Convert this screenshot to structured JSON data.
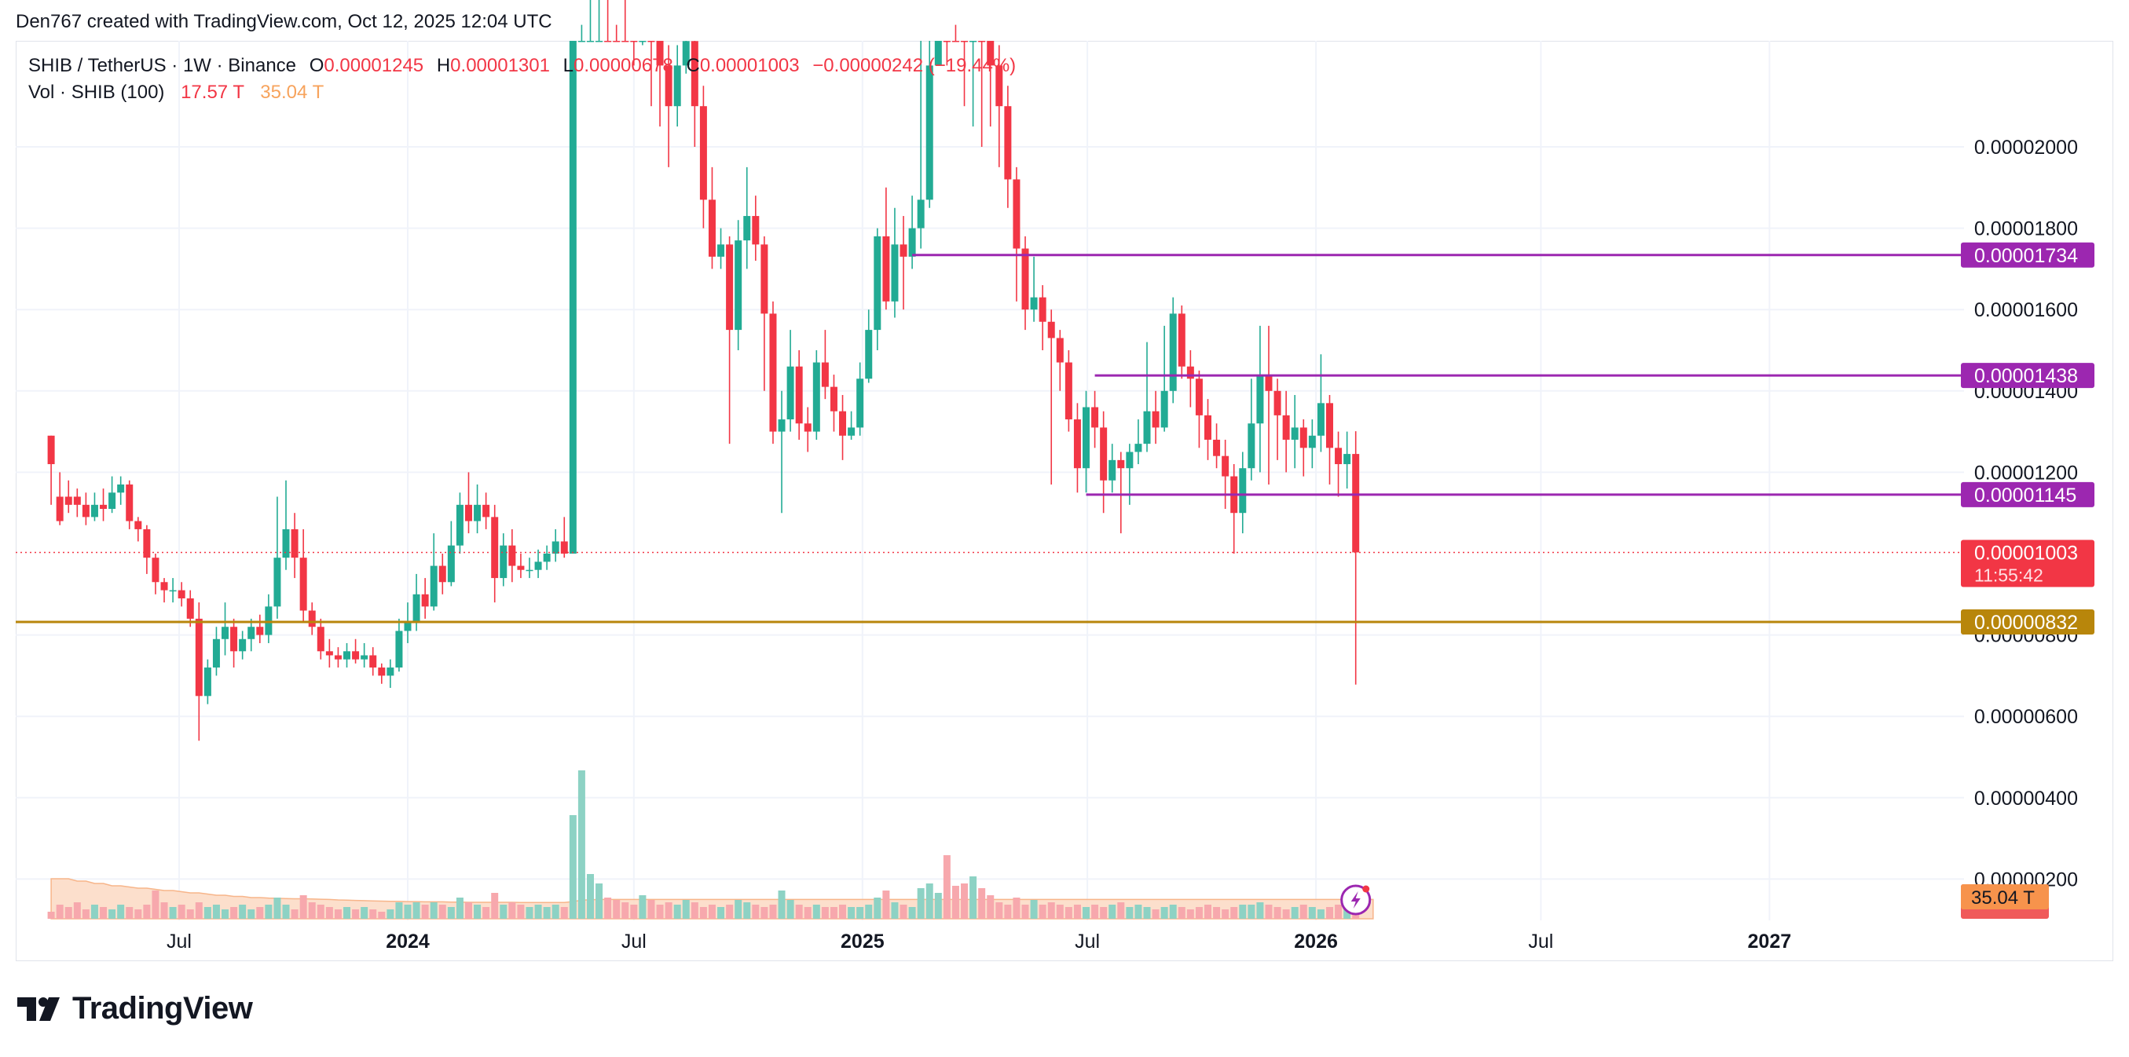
{
  "header": {
    "credit": "Den767 created with TradingView.com, Oct 12, 2025 12:04 UTC"
  },
  "legend": {
    "symbol": "SHIB / TetherUS · 1W · Binance",
    "o_key": "O",
    "o_val": "0.00001245",
    "h_key": "H",
    "h_val": "0.00001301",
    "l_key": "L",
    "l_val": "0.00000678",
    "c_key": "C",
    "c_val": "0.00001003",
    "change": "−0.00000242 (−19.44%)",
    "vol_label": "Vol · SHIB (100)",
    "vol_value": "17.57 T",
    "vol_ma": "35.04 T"
  },
  "footer": {
    "logo_text": "TradingView"
  },
  "colors": {
    "up": "#22ab94",
    "down": "#f23645",
    "level": "#9c27b0",
    "support": "#b8860b",
    "price_line": "#f23645",
    "vol_ma_fill": "#fcd9c3",
    "vol_ma_badge": "#f7934c"
  },
  "chart_data": {
    "type": "candlestick",
    "title": "SHIB / TetherUS · 1W · Binance",
    "y_ticks": [
      "0.00002000",
      "0.00001800",
      "0.00001600",
      "0.00001400",
      "0.00001200",
      "0.00000800",
      "0.00000600",
      "0.00000400",
      "0.00000200"
    ],
    "y_tick_values": [
      2e-05,
      1.8e-05,
      1.6e-05,
      1.4e-05,
      1.2e-05,
      8e-06,
      6e-06,
      4e-06,
      2e-06
    ],
    "x_ticks": [
      {
        "label": "Jul",
        "date": "2023-07-01",
        "bold": false
      },
      {
        "label": "2024",
        "date": "2024-01-01",
        "bold": true
      },
      {
        "label": "Jul",
        "date": "2024-07-01",
        "bold": false
      },
      {
        "label": "2025",
        "date": "2025-01-01",
        "bold": true
      },
      {
        "label": "Jul",
        "date": "2025-07-01",
        "bold": false
      },
      {
        "label": "2026",
        "date": "2026-01-01",
        "bold": true
      },
      {
        "label": "Jul",
        "date": "2026-07-01",
        "bold": false
      },
      {
        "label": "2027",
        "date": "2027-01-01",
        "bold": true
      }
    ],
    "ohlc_start_week": "2023-03-20",
    "ohlc": [
      [
        1.29,
        1.22,
        1.29,
        1.12
      ],
      [
        1.14,
        1.08,
        1.2,
        1.07
      ],
      [
        1.14,
        1.12,
        1.18,
        1.1
      ],
      [
        1.14,
        1.12,
        1.16,
        1.09
      ],
      [
        1.12,
        1.09,
        1.15,
        1.07
      ],
      [
        1.09,
        1.12,
        1.15,
        1.08
      ],
      [
        1.12,
        1.11,
        1.16,
        1.08
      ],
      [
        1.11,
        1.15,
        1.19,
        1.1
      ],
      [
        1.15,
        1.17,
        1.19,
        1.12
      ],
      [
        1.17,
        1.08,
        1.18,
        1.06
      ],
      [
        1.08,
        1.06,
        1.09,
        1.03
      ],
      [
        1.06,
        0.99,
        1.07,
        0.95
      ],
      [
        0.99,
        0.93,
        1.0,
        0.9
      ],
      [
        0.93,
        0.91,
        0.94,
        0.88
      ],
      [
        0.91,
        0.91,
        0.94,
        0.88
      ],
      [
        0.91,
        0.89,
        0.93,
        0.87
      ],
      [
        0.89,
        0.84,
        0.91,
        0.82
      ],
      [
        0.84,
        0.65,
        0.88,
        0.54
      ],
      [
        0.65,
        0.72,
        0.74,
        0.63
      ],
      [
        0.72,
        0.79,
        0.82,
        0.7
      ],
      [
        0.79,
        0.82,
        0.88,
        0.75
      ],
      [
        0.82,
        0.76,
        0.84,
        0.72
      ],
      [
        0.76,
        0.79,
        0.81,
        0.74
      ],
      [
        0.79,
        0.82,
        0.84,
        0.76
      ],
      [
        0.82,
        0.8,
        0.85,
        0.78
      ],
      [
        0.8,
        0.87,
        0.9,
        0.78
      ],
      [
        0.87,
        0.99,
        1.14,
        0.84
      ],
      [
        0.99,
        1.06,
        1.18,
        0.96
      ],
      [
        1.06,
        0.99,
        1.1,
        0.94
      ],
      [
        0.99,
        0.86,
        1.06,
        0.83
      ],
      [
        0.86,
        0.82,
        0.88,
        0.8
      ],
      [
        0.82,
        0.76,
        0.84,
        0.74
      ],
      [
        0.76,
        0.75,
        0.79,
        0.72
      ],
      [
        0.75,
        0.74,
        0.77,
        0.72
      ],
      [
        0.74,
        0.76,
        0.78,
        0.72
      ],
      [
        0.76,
        0.74,
        0.79,
        0.73
      ],
      [
        0.74,
        0.75,
        0.78,
        0.72
      ],
      [
        0.75,
        0.72,
        0.77,
        0.7
      ],
      [
        0.72,
        0.7,
        0.73,
        0.68
      ],
      [
        0.7,
        0.72,
        0.74,
        0.67
      ],
      [
        0.72,
        0.81,
        0.84,
        0.71
      ],
      [
        0.81,
        0.83,
        0.88,
        0.78
      ],
      [
        0.83,
        0.9,
        0.95,
        0.81
      ],
      [
        0.9,
        0.87,
        0.94,
        0.84
      ],
      [
        0.87,
        0.97,
        1.05,
        0.86
      ],
      [
        0.97,
        0.93,
        1.0,
        0.9
      ],
      [
        0.93,
        1.02,
        1.08,
        0.92
      ],
      [
        1.02,
        1.12,
        1.15,
        1.0
      ],
      [
        1.12,
        1.08,
        1.2,
        1.05
      ],
      [
        1.08,
        1.12,
        1.17,
        1.05
      ],
      [
        1.12,
        1.09,
        1.15,
        1.06
      ],
      [
        1.09,
        0.94,
        1.12,
        0.88
      ],
      [
        0.94,
        1.02,
        1.05,
        0.92
      ],
      [
        1.02,
        0.97,
        1.06,
        0.93
      ],
      [
        0.97,
        0.96,
        1.0,
        0.94
      ],
      [
        0.96,
        0.96,
        0.99,
        0.94
      ],
      [
        0.96,
        0.98,
        1.01,
        0.94
      ],
      [
        0.98,
        1.0,
        1.02,
        0.96
      ],
      [
        1.0,
        1.03,
        1.06,
        0.98
      ],
      [
        1.03,
        1.0,
        1.09,
        0.99
      ],
      [
        1.0,
        2.4,
        2.4,
        1.0
      ],
      [
        2.4,
        2.6,
        3.0,
        2.3
      ],
      [
        2.6,
        2.72,
        2.9,
        2.5
      ],
      [
        2.72,
        2.75,
        2.85,
        2.6
      ],
      [
        2.75,
        2.72,
        2.8,
        2.65
      ],
      [
        2.72,
        2.5,
        2.8,
        2.3
      ],
      [
        2.5,
        2.45,
        2.58,
        2.4
      ],
      [
        2.45,
        2.3,
        2.5,
        2.2
      ],
      [
        2.3,
        2.4,
        2.5,
        2.25
      ],
      [
        2.4,
        2.33,
        2.45,
        2.1
      ],
      [
        2.33,
        2.2,
        2.4,
        2.05
      ],
      [
        2.2,
        2.1,
        2.25,
        1.95
      ],
      [
        2.1,
        2.2,
        2.25,
        2.05
      ],
      [
        2.2,
        2.26,
        2.3,
        2.18
      ],
      [
        2.26,
        2.1,
        2.3,
        2.0
      ],
      [
        2.1,
        1.87,
        2.15,
        1.8
      ],
      [
        1.87,
        1.73,
        1.95,
        1.7
      ],
      [
        1.73,
        1.76,
        1.8,
        1.7
      ],
      [
        1.76,
        1.55,
        1.78,
        1.27
      ],
      [
        1.55,
        1.77,
        1.82,
        1.5
      ],
      [
        1.77,
        1.83,
        1.95,
        1.7
      ],
      [
        1.83,
        1.76,
        1.88,
        1.72
      ],
      [
        1.76,
        1.59,
        1.78,
        1.4
      ],
      [
        1.59,
        1.3,
        1.62,
        1.27
      ],
      [
        1.3,
        1.33,
        1.4,
        1.1
      ],
      [
        1.33,
        1.46,
        1.55,
        1.3
      ],
      [
        1.46,
        1.32,
        1.5,
        1.28
      ],
      [
        1.32,
        1.3,
        1.36,
        1.25
      ],
      [
        1.3,
        1.47,
        1.5,
        1.28
      ],
      [
        1.47,
        1.41,
        1.55,
        1.38
      ],
      [
        1.41,
        1.35,
        1.44,
        1.3
      ],
      [
        1.35,
        1.29,
        1.39,
        1.23
      ],
      [
        1.29,
        1.31,
        1.35,
        1.28
      ],
      [
        1.31,
        1.43,
        1.47,
        1.29
      ],
      [
        1.43,
        1.55,
        1.6,
        1.42
      ],
      [
        1.55,
        1.78,
        1.8,
        1.5
      ],
      [
        1.78,
        1.62,
        1.9,
        1.6
      ],
      [
        1.62,
        1.76,
        1.85,
        1.58
      ],
      [
        1.76,
        1.73,
        1.83,
        1.6
      ],
      [
        1.73,
        1.8,
        1.88,
        1.7
      ],
      [
        1.8,
        1.87,
        2.35,
        1.75
      ],
      [
        1.87,
        2.2,
        2.6,
        1.85
      ],
      [
        2.2,
        2.65,
        3.0,
        2.2
      ],
      [
        2.65,
        2.55,
        2.8,
        2.2
      ],
      [
        2.55,
        2.45,
        2.7,
        2.3
      ],
      [
        2.45,
        2.3,
        2.55,
        2.1
      ],
      [
        2.3,
        2.35,
        2.4,
        2.05
      ],
      [
        2.35,
        2.3,
        2.45,
        2.0
      ],
      [
        2.3,
        2.2,
        2.35,
        2.05
      ],
      [
        2.2,
        2.1,
        2.25,
        1.95
      ],
      [
        2.1,
        1.92,
        2.15,
        1.85
      ],
      [
        1.92,
        1.75,
        1.95,
        1.62
      ],
      [
        1.75,
        1.6,
        1.78,
        1.55
      ],
      [
        1.6,
        1.63,
        1.73,
        1.57
      ],
      [
        1.63,
        1.57,
        1.66,
        1.5
      ],
      [
        1.57,
        1.53,
        1.6,
        1.17
      ],
      [
        1.53,
        1.47,
        1.55,
        1.4
      ],
      [
        1.47,
        1.33,
        1.5,
        1.3
      ],
      [
        1.33,
        1.21,
        1.37,
        1.15
      ],
      [
        1.21,
        1.36,
        1.4,
        1.15
      ],
      [
        1.36,
        1.31,
        1.4,
        1.26
      ],
      [
        1.31,
        1.18,
        1.35,
        1.1
      ],
      [
        1.18,
        1.23,
        1.27,
        1.15
      ],
      [
        1.23,
        1.21,
        1.25,
        1.05
      ],
      [
        1.21,
        1.25,
        1.27,
        1.12
      ],
      [
        1.25,
        1.27,
        1.33,
        1.22
      ],
      [
        1.27,
        1.35,
        1.52,
        1.25
      ],
      [
        1.35,
        1.31,
        1.4,
        1.27
      ],
      [
        1.31,
        1.4,
        1.56,
        1.3
      ],
      [
        1.4,
        1.59,
        1.63,
        1.37
      ],
      [
        1.59,
        1.46,
        1.61,
        1.43
      ],
      [
        1.46,
        1.43,
        1.5,
        1.36
      ],
      [
        1.43,
        1.34,
        1.45,
        1.26
      ],
      [
        1.34,
        1.28,
        1.38,
        1.23
      ],
      [
        1.28,
        1.24,
        1.32,
        1.21
      ],
      [
        1.24,
        1.19,
        1.28,
        1.11
      ],
      [
        1.19,
        1.1,
        1.22,
        1.0
      ],
      [
        1.1,
        1.21,
        1.25,
        1.05
      ],
      [
        1.21,
        1.32,
        1.43,
        1.18
      ],
      [
        1.32,
        1.44,
        1.56,
        1.2
      ],
      [
        1.44,
        1.4,
        1.56,
        1.17
      ],
      [
        1.4,
        1.34,
        1.43,
        1.23
      ],
      [
        1.34,
        1.28,
        1.4,
        1.2
      ],
      [
        1.28,
        1.31,
        1.39,
        1.21
      ],
      [
        1.31,
        1.26,
        1.33,
        1.19
      ],
      [
        1.26,
        1.29,
        1.33,
        1.21
      ],
      [
        1.29,
        1.37,
        1.49,
        1.25
      ],
      [
        1.37,
        1.26,
        1.39,
        1.17
      ],
      [
        1.26,
        1.22,
        1.3,
        1.14
      ],
      [
        1.22,
        1.245,
        1.3,
        1.16
      ],
      [
        1.245,
        1.003,
        1.301,
        0.678
      ]
    ],
    "volume": [
      0.3,
      0.6,
      0.5,
      0.7,
      0.4,
      0.6,
      0.5,
      0.4,
      0.6,
      0.5,
      0.4,
      0.6,
      1.2,
      0.7,
      0.5,
      0.6,
      0.4,
      0.7,
      0.5,
      0.6,
      0.4,
      0.5,
      0.6,
      0.4,
      0.5,
      0.6,
      0.9,
      0.6,
      0.4,
      1.0,
      0.7,
      0.6,
      0.5,
      0.4,
      0.5,
      0.4,
      0.5,
      0.4,
      0.3,
      0.4,
      0.7,
      0.6,
      0.7,
      0.6,
      0.7,
      0.6,
      0.5,
      0.9,
      0.7,
      0.6,
      0.5,
      1.1,
      0.6,
      0.7,
      0.6,
      0.5,
      0.6,
      0.5,
      0.6,
      0.5,
      4.4,
      6.3,
      1.9,
      1.5,
      0.9,
      0.8,
      0.7,
      0.6,
      1.0,
      0.8,
      0.6,
      0.7,
      0.6,
      0.8,
      0.7,
      0.5,
      0.6,
      0.5,
      0.6,
      0.8,
      0.7,
      0.6,
      0.5,
      0.6,
      1.2,
      0.8,
      0.6,
      0.5,
      0.6,
      0.5,
      0.5,
      0.6,
      0.5,
      0.5,
      0.6,
      0.9,
      1.2,
      0.7,
      0.6,
      0.5,
      1.3,
      1.5,
      1.1,
      2.7,
      1.4,
      1.5,
      1.8,
      1.3,
      1.0,
      0.7,
      0.6,
      0.9,
      0.6,
      0.8,
      0.6,
      0.7,
      0.6,
      0.5,
      0.6,
      0.5,
      0.6,
      0.5,
      0.6,
      0.7,
      0.5,
      0.6,
      0.5,
      0.4,
      0.5,
      0.6,
      0.5,
      0.4,
      0.5,
      0.6,
      0.5,
      0.4,
      0.5,
      0.6,
      0.6,
      0.7,
      0.6,
      0.5,
      0.4,
      0.5,
      0.6,
      0.5,
      0.4,
      0.5,
      0.6,
      0.5,
      0.3
    ],
    "volume_ma_badge": "35.04 T",
    "volume_ma": [
      1.7,
      1.7,
      1.7,
      1.6,
      1.6,
      1.5,
      1.5,
      1.4,
      1.4,
      1.35,
      1.3,
      1.3,
      1.25,
      1.2,
      1.2,
      1.15,
      1.1,
      1.1,
      1.05,
      1.0,
      1.0,
      0.95,
      0.95,
      0.9,
      0.9,
      0.88,
      0.87,
      0.86,
      0.85,
      0.85,
      0.84,
      0.83,
      0.82,
      0.8,
      0.79,
      0.78,
      0.77,
      0.76,
      0.75,
      0.74,
      0.74,
      0.73,
      0.73,
      0.72,
      0.72,
      0.72,
      0.71,
      0.71,
      0.7,
      0.7,
      0.7,
      0.7,
      0.7,
      0.7,
      0.69,
      0.69,
      0.69,
      0.69,
      0.69,
      0.69,
      0.73,
      0.79,
      0.81,
      0.82,
      0.82,
      0.82,
      0.82,
      0.82,
      0.82,
      0.82,
      0.82,
      0.82,
      0.82,
      0.82,
      0.82,
      0.82,
      0.82,
      0.82,
      0.82,
      0.82,
      0.82,
      0.82,
      0.82,
      0.82,
      0.82,
      0.82,
      0.82,
      0.82,
      0.82,
      0.82,
      0.82,
      0.82,
      0.82,
      0.82,
      0.82,
      0.82,
      0.82,
      0.82,
      0.82,
      0.82,
      0.82,
      0.82,
      0.82,
      0.82,
      0.82,
      0.82,
      0.82,
      0.82,
      0.82,
      0.82,
      0.82,
      0.82,
      0.82,
      0.82,
      0.82,
      0.82,
      0.82,
      0.82,
      0.82,
      0.82,
      0.82,
      0.82,
      0.82,
      0.82,
      0.82,
      0.82,
      0.82,
      0.82,
      0.82,
      0.82,
      0.82,
      0.82,
      0.82,
      0.82,
      0.82,
      0.82,
      0.82,
      0.82,
      0.82,
      0.82,
      0.82,
      0.82,
      0.82,
      0.82,
      0.82,
      0.82,
      0.82,
      0.82,
      0.82,
      0.82,
      0.82,
      0.82,
      0.82
    ],
    "price_scale_note": "ohlc values are ×0.00001",
    "levels": [
      {
        "value": 1.734e-05,
        "label": "0.00001734",
        "start_week": "2025-02-10",
        "color": "#9c27b0"
      },
      {
        "value": 1.438e-05,
        "label": "0.00001438",
        "start_week": "2025-07-07",
        "color": "#9c27b0"
      },
      {
        "value": 1.145e-05,
        "label": "0.00001145",
        "start_week": "2025-06-30",
        "color": "#9c27b0"
      }
    ],
    "support": {
      "value": 8.32e-06,
      "label": "0.00000832",
      "color": "#b8860b"
    },
    "last_price": {
      "value": 1.003e-05,
      "label": "0.00001003",
      "countdown": "11:55:42"
    }
  }
}
